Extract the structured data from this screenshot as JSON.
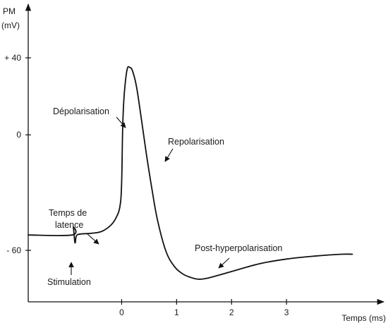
{
  "chart_data": {
    "type": "line",
    "title": "",
    "ylabel_lines": [
      "PM",
      "(mV)"
    ],
    "xlabel": "Temps (ms)",
    "xlim": [
      -1.7,
      4.5
    ],
    "ylim": [
      -80,
      72
    ],
    "x_ticks": [
      {
        "value": 0,
        "label": "0"
      },
      {
        "value": 1,
        "label": "1"
      },
      {
        "value": 2,
        "label": "2"
      },
      {
        "value": 3,
        "label": "3"
      }
    ],
    "y_ticks": [
      {
        "value": 40,
        "label": "+ 40"
      },
      {
        "value": 0,
        "label": "0"
      },
      {
        "value": -60,
        "label": "- 60"
      }
    ],
    "grid": false,
    "series": [
      {
        "x": [
          -1.7,
          -0.9,
          -0.88,
          -0.85,
          -0.83,
          -0.81,
          -0.75,
          -0.5,
          -0.35,
          -0.2,
          -0.1,
          -0.03,
          0.0,
          0.02,
          0.05,
          0.1,
          0.15,
          0.2,
          0.27,
          0.35,
          0.45,
          0.55,
          0.65,
          0.8,
          0.95,
          1.1,
          1.25,
          1.4,
          1.55,
          1.75,
          2.0,
          2.5,
          3.0,
          3.5,
          4.0,
          4.2
        ],
        "y": [
          -52,
          -52,
          -48,
          -56,
          -53,
          -52,
          -51.5,
          -51,
          -50,
          -47,
          -43,
          -37,
          -25,
          5,
          22,
          34,
          35,
          33,
          25,
          10,
          -10,
          -28,
          -44,
          -60,
          -68,
          -72,
          -74,
          -75,
          -74.5,
          -73,
          -71,
          -67,
          -64.5,
          -63,
          -62,
          -62
        ]
      }
    ],
    "annotations": [
      {
        "text": "Dépolarisation"
      },
      {
        "text": "Repolarisation"
      },
      {
        "text": "Temps de"
      },
      {
        "text": "latence"
      },
      {
        "text": "Post-hyperpolarisation"
      },
      {
        "text": "Stimulation"
      }
    ],
    "colors": {
      "line": "#111111",
      "axis": "#111111"
    }
  }
}
